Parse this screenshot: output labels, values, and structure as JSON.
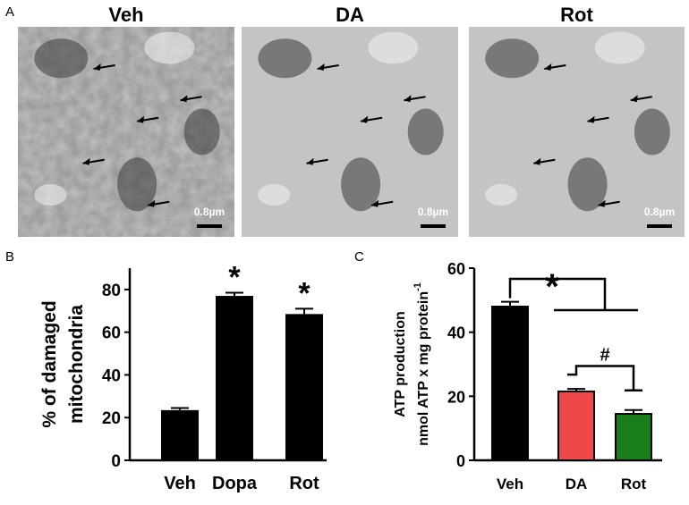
{
  "panel_a": {
    "label": "A",
    "images": [
      {
        "title": "Veh",
        "scale": "0.8µm"
      },
      {
        "title": "DA",
        "scale": "0.8µm"
      },
      {
        "title": "Rot",
        "scale": "0.8µm"
      }
    ]
  },
  "chart_data": [
    {
      "type": "bar",
      "panel": "B",
      "ylabel": [
        "% of damaged",
        "mitochondria"
      ],
      "categories": [
        "Veh",
        "Dopa",
        "Rot"
      ],
      "values": [
        23.5,
        77,
        68.5
      ],
      "errors": [
        1,
        1.5,
        2.5
      ],
      "colors": [
        "#000000",
        "#000000",
        "#000000"
      ],
      "significance": [
        null,
        "*",
        "*"
      ],
      "ylim": [
        0,
        90
      ],
      "yticks": [
        0,
        20,
        40,
        60,
        80
      ]
    },
    {
      "type": "bar",
      "panel": "C",
      "ylabel": [
        "ATP production",
        "nmol ATP x mg protein"
      ],
      "ylabel_superscript": "-1",
      "categories": [
        "Veh",
        "DA",
        "Rot"
      ],
      "values": [
        48,
        21.5,
        14.5
      ],
      "errors": [
        1.5,
        0.8,
        1.2
      ],
      "colors": [
        "#000000",
        "#f04848",
        "#1a7f1a"
      ],
      "outline": true,
      "comparisons": [
        {
          "label": "*"
        },
        {
          "label": "#"
        }
      ],
      "ylim": [
        0,
        60
      ],
      "yticks": [
        0,
        20,
        40,
        60
      ]
    }
  ]
}
